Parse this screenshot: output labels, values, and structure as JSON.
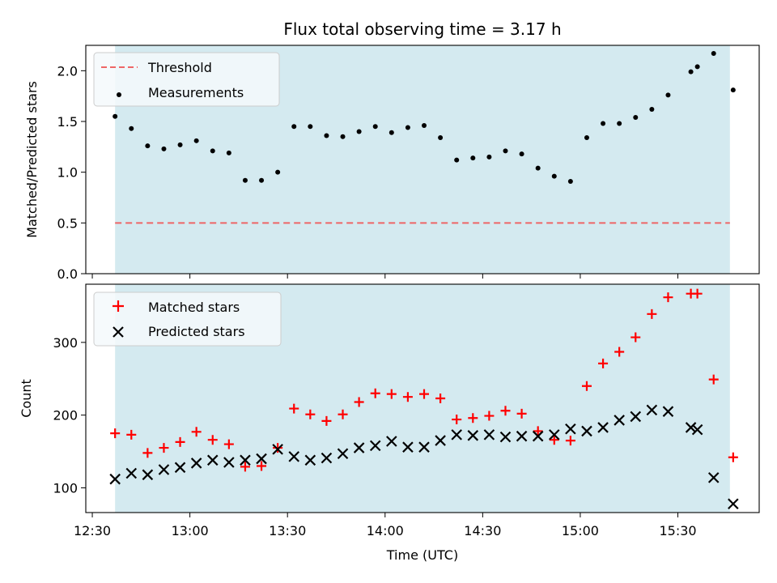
{
  "chart_data": [
    {
      "type": "scatter",
      "panel": "top",
      "title": "Flux total observing time = 3.17 h",
      "ylabel": "Matched/Predicted stars",
      "xlabel": "",
      "ylim": [
        0,
        2.25
      ],
      "yticks": [
        0.0,
        0.5,
        1.0,
        1.5,
        2.0
      ],
      "ytick_labels": [
        "0.0",
        "0.5",
        "1.0",
        "1.5",
        "2.0"
      ],
      "shaded_span": {
        "start": "12:37",
        "end": "15:46",
        "color": "#d4eaf0"
      },
      "threshold": {
        "label": "Threshold",
        "value": 0.5,
        "color": "#ee6666"
      },
      "legend": {
        "placement": "top-left",
        "entries": [
          "Threshold",
          "Measurements"
        ]
      },
      "series": [
        {
          "name": "Measurements",
          "color": "#000000",
          "x": [
            "12:37",
            "12:42",
            "12:47",
            "12:52",
            "12:57",
            "13:02",
            "13:07",
            "13:12",
            "13:17",
            "13:22",
            "13:27",
            "13:32",
            "13:37",
            "13:42",
            "13:47",
            "13:52",
            "13:57",
            "14:02",
            "14:07",
            "14:12",
            "14:17",
            "14:22",
            "14:27",
            "14:32",
            "14:37",
            "14:42",
            "14:47",
            "14:52",
            "14:57",
            "15:02",
            "15:07",
            "15:12",
            "15:17",
            "15:22",
            "15:27",
            "15:34",
            "15:36",
            "15:41",
            "15:47"
          ],
          "values": [
            1.55,
            1.43,
            1.26,
            1.23,
            1.27,
            1.31,
            1.21,
            1.19,
            0.92,
            0.92,
            1.0,
            1.45,
            1.45,
            1.36,
            1.35,
            1.4,
            1.45,
            1.39,
            1.44,
            1.46,
            1.34,
            1.12,
            1.14,
            1.15,
            1.21,
            1.18,
            1.04,
            0.96,
            0.91,
            1.34,
            1.48,
            1.48,
            1.54,
            1.62,
            1.76,
            1.99,
            2.04,
            2.17,
            1.81
          ]
        }
      ]
    },
    {
      "type": "scatter",
      "panel": "bottom",
      "xlabel": "Time (UTC)",
      "ylabel": "Count",
      "ylim": [
        66,
        380
      ],
      "yticks": [
        100,
        200,
        300
      ],
      "ytick_labels": [
        "100",
        "200",
        "300"
      ],
      "xlim": [
        "12:28",
        "15:55"
      ],
      "xticks": [
        "12:30",
        "13:00",
        "13:30",
        "14:00",
        "14:30",
        "15:00",
        "15:30"
      ],
      "xtick_labels": [
        "12:30",
        "13:00",
        "13:30",
        "14:00",
        "14:30",
        "15:00",
        "15:30"
      ],
      "shaded_span": {
        "start": "12:37",
        "end": "15:46",
        "color": "#d4eaf0"
      },
      "legend": {
        "placement": "top-left",
        "entries": [
          "Matched stars",
          "Predicted stars"
        ]
      },
      "series": [
        {
          "name": "Matched stars",
          "marker": "+",
          "color": "#ff0000",
          "x": [
            "12:37",
            "12:42",
            "12:47",
            "12:52",
            "12:57",
            "13:02",
            "13:07",
            "13:12",
            "13:17",
            "13:22",
            "13:27",
            "13:32",
            "13:37",
            "13:42",
            "13:47",
            "13:52",
            "13:57",
            "14:02",
            "14:07",
            "14:12",
            "14:17",
            "14:22",
            "14:27",
            "14:32",
            "14:37",
            "14:42",
            "14:47",
            "14:52",
            "14:57",
            "15:02",
            "15:07",
            "15:12",
            "15:17",
            "15:22",
            "15:27",
            "15:34",
            "15:36",
            "15:41",
            "15:47"
          ],
          "values": [
            175,
            173,
            148,
            155,
            163,
            177,
            166,
            160,
            129,
            130,
            155,
            209,
            201,
            192,
            201,
            218,
            230,
            229,
            225,
            229,
            223,
            194,
            196,
            199,
            206,
            202,
            178,
            166,
            165,
            240,
            271,
            287,
            307,
            339,
            362,
            367,
            367,
            249,
            142
          ]
        },
        {
          "name": "Predicted stars",
          "marker": "x",
          "color": "#000000",
          "x": [
            "12:37",
            "12:42",
            "12:47",
            "12:52",
            "12:57",
            "13:02",
            "13:07",
            "13:12",
            "13:17",
            "13:22",
            "13:27",
            "13:32",
            "13:37",
            "13:42",
            "13:47",
            "13:52",
            "13:57",
            "14:02",
            "14:07",
            "14:12",
            "14:17",
            "14:22",
            "14:27",
            "14:32",
            "14:37",
            "14:42",
            "14:47",
            "14:52",
            "14:57",
            "15:02",
            "15:07",
            "15:12",
            "15:17",
            "15:22",
            "15:27",
            "15:34",
            "15:36",
            "15:41",
            "15:47"
          ],
          "values": [
            112,
            120,
            118,
            125,
            128,
            134,
            138,
            135,
            138,
            140,
            153,
            143,
            138,
            141,
            147,
            155,
            158,
            164,
            156,
            156,
            165,
            173,
            172,
            173,
            170,
            171,
            171,
            173,
            181,
            178,
            183,
            193,
            198,
            207,
            205,
            183,
            180,
            114,
            78
          ]
        }
      ]
    }
  ]
}
